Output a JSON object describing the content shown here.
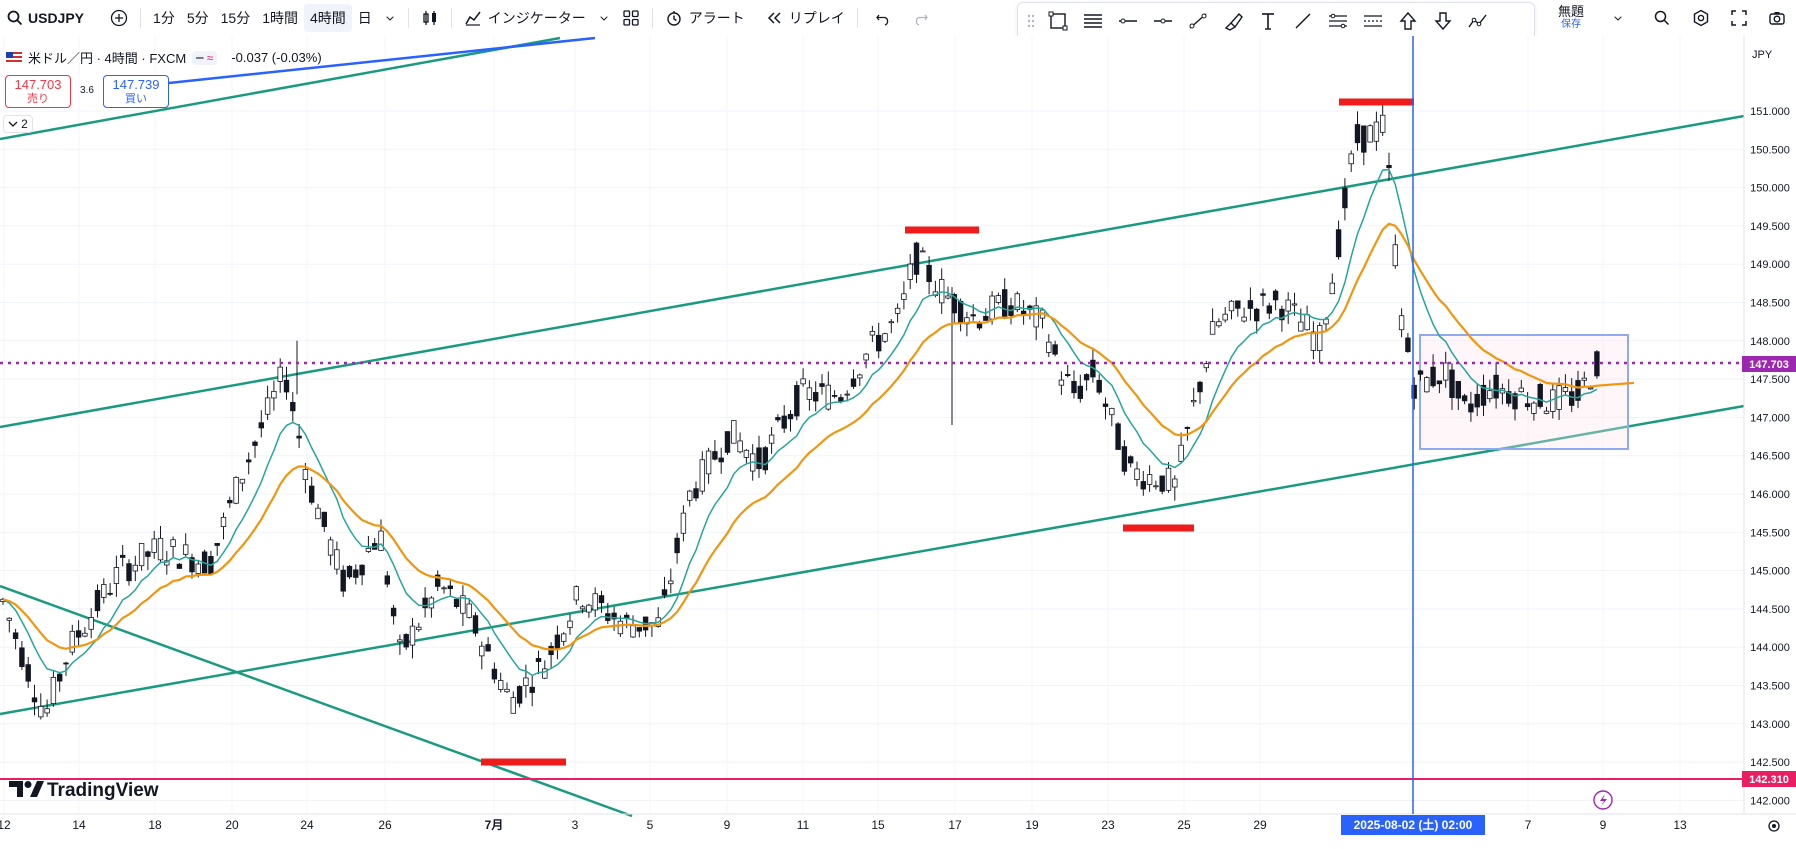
{
  "toolbar": {
    "symbol": "USDJPY",
    "intervals": [
      "1分",
      "5分",
      "15分",
      "1時間",
      "4時間",
      "日"
    ],
    "active_interval": "4時間",
    "indicators_label": "インジケーター",
    "alert_label": "アラート",
    "replay_label": "リプレイ",
    "layout_name": "無題",
    "save_label": "保存"
  },
  "legend": {
    "title": "米ドル／円 · 4時間 · FXCM",
    "change": "-0.037 (-0.03%)",
    "sell_price": "147.703",
    "sell_label": "売り",
    "buy_price": "147.739",
    "buy_label": "買い",
    "spread": "3.6",
    "collapse_count": "2"
  },
  "axis": {
    "currency": "JPY",
    "price_labels": [
      "151.000",
      "150.500",
      "150.000",
      "149.500",
      "149.000",
      "148.500",
      "148.000",
      "147.500",
      "147.000",
      "146.500",
      "146.000",
      "145.500",
      "145.000",
      "144.500",
      "144.000",
      "143.500",
      "143.000",
      "142.500",
      "142.000"
    ],
    "current_price": "147.703",
    "support_price": "142.310",
    "date_labels": [
      "12",
      "14",
      "18",
      "20",
      "24",
      "26",
      "7月",
      "3",
      "5",
      "9",
      "11",
      "15",
      "17",
      "19",
      "23",
      "25",
      "29",
      "7",
      "9",
      "13"
    ],
    "crosshair_date": "2025-08-02 (土)   02:00"
  },
  "branding": {
    "name": "TradingView"
  },
  "colors": {
    "trend": "#1a9a7f",
    "red_marker": "#ef1c1c",
    "price_line": "#9c27b0",
    "support_line": "#e91e63",
    "crosshair": "#2962ff",
    "ma_fast": "#f0960f",
    "ma_slow": "#26a69a"
  }
}
